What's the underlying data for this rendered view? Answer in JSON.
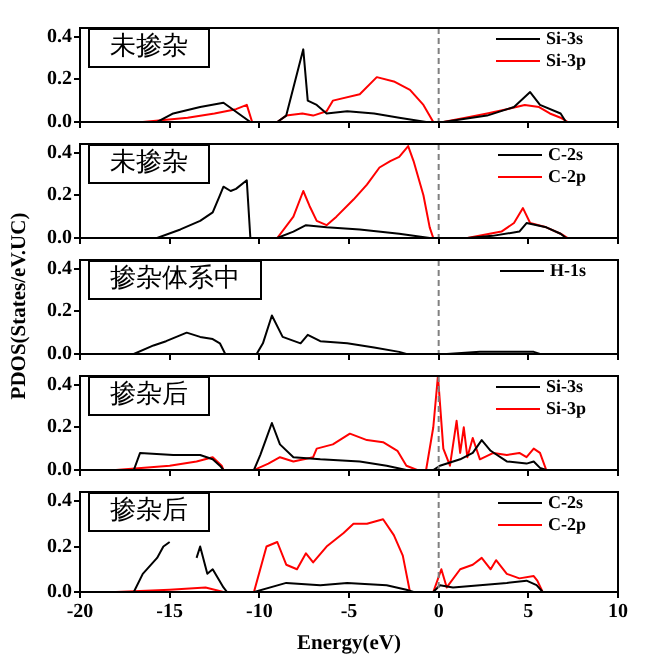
{
  "chart_data": [
    {
      "type": "line",
      "annotations": [
        "未掺杂"
      ],
      "xlim": [
        -20,
        10
      ],
      "xticks": [
        -20,
        -15,
        -10,
        -5,
        0,
        5,
        10
      ],
      "ylim": [
        0,
        0.44
      ],
      "yticks": [
        {
          "value": 0,
          "label": "0.0"
        },
        {
          "value": 0.2,
          "label": "0.2"
        },
        {
          "value": 0.4,
          "label": "0.4"
        }
      ],
      "tick_labels": "y",
      "grid": false,
      "legend": "top right",
      "ref_lines": [
        {
          "axis": "x",
          "value": 0,
          "color": "#808080",
          "line_style": "dashed"
        }
      ],
      "series": [
        {
          "name": "Si-3s",
          "color": "#000000",
          "x": [
            -18,
            -15.7,
            -14.8,
            -13.3,
            -12,
            -10.5,
            -9,
            -8.5,
            -7.55,
            -7.3,
            -6.8,
            -6.25,
            -5.1,
            -3.6,
            -2.2,
            -0.7,
            0.26,
            2.7,
            4.2,
            5.1,
            5.65,
            6.8,
            7.1,
            7.5
          ],
          "values": [
            0,
            0,
            0.04,
            0.07,
            0.09,
            0,
            0,
            0.03,
            0.34,
            0.1,
            0.08,
            0.04,
            0.05,
            0.04,
            0.02,
            0,
            0,
            0.03,
            0.07,
            0.14,
            0.08,
            0.04,
            0,
            0
          ]
        },
        {
          "name": "Si-3p",
          "color": "#ff0000",
          "x": [
            -18,
            -16.5,
            -14,
            -12.5,
            -11.3,
            -10.7,
            -10.4,
            -9,
            -8.5,
            -7.6,
            -7,
            -6.25,
            -5.9,
            -4.4,
            -3.45,
            -2.5,
            -1.6,
            -0.85,
            -0.3,
            0.26,
            1.5,
            2.7,
            3.8,
            4.8,
            5.6,
            6.2,
            6.8,
            7.2,
            7.5
          ],
          "values": [
            0,
            0,
            0.02,
            0.04,
            0.06,
            0.08,
            0,
            0,
            0.03,
            0.04,
            0.03,
            0.05,
            0.1,
            0.13,
            0.21,
            0.19,
            0.15,
            0.08,
            0,
            0,
            0.02,
            0.04,
            0.06,
            0.08,
            0.07,
            0.04,
            0.02,
            0,
            0
          ]
        }
      ]
    },
    {
      "type": "line",
      "annotations": [
        "未掺杂"
      ],
      "xlim": [
        -20,
        10
      ],
      "xticks": [
        -20,
        -15,
        -10,
        -5,
        0,
        5,
        10
      ],
      "ylim": [
        0,
        0.44
      ],
      "yticks": [
        {
          "value": 0,
          "label": "0.0"
        },
        {
          "value": 0.2,
          "label": "0.2"
        },
        {
          "value": 0.4,
          "label": "0.4"
        }
      ],
      "tick_labels": "y",
      "grid": false,
      "legend": "top right",
      "ref_lines": [
        {
          "axis": "x",
          "value": 0,
          "color": "#808080",
          "line_style": "dashed"
        }
      ],
      "series": [
        {
          "name": "C-2s",
          "color": "#000000",
          "x": [
            -18,
            -15.7,
            -14.4,
            -13.3,
            -12.6,
            -12.2,
            -12,
            -11.6,
            -11.3,
            -10.7,
            -10.5,
            -9,
            -8.1,
            -7.4,
            -6.25,
            -4.4,
            -2.2,
            -0.5,
            1.6,
            3,
            4.5,
            4.9,
            6,
            6.8,
            7.1,
            7.5
          ],
          "values": [
            0,
            0,
            0.04,
            0.08,
            0.12,
            0.2,
            0.24,
            0.22,
            0.23,
            0.27,
            0,
            0,
            0.03,
            0.06,
            0.05,
            0.04,
            0.02,
            0,
            0,
            0.01,
            0.03,
            0.07,
            0.05,
            0.02,
            0,
            0
          ]
        },
        {
          "name": "C-2p",
          "color": "#ff0000",
          "x": [
            -18,
            -9,
            -8.1,
            -7.55,
            -7.2,
            -6.8,
            -6.25,
            -5.7,
            -4.75,
            -4,
            -3.3,
            -2.7,
            -2.2,
            -1.7,
            -1.4,
            -0.85,
            -0.5,
            -0.3,
            1.6,
            3.5,
            4.2,
            4.7,
            5.1,
            6,
            6.8,
            7.2,
            7.5
          ],
          "values": [
            0,
            0,
            0.1,
            0.22,
            0.15,
            0.08,
            0.06,
            0.1,
            0.18,
            0.25,
            0.33,
            0.36,
            0.38,
            0.43,
            0.36,
            0.2,
            0.05,
            0,
            0,
            0.03,
            0.07,
            0.14,
            0.07,
            0.05,
            0.02,
            0,
            0
          ]
        }
      ]
    },
    {
      "type": "line",
      "annotations": [
        "掺杂体系中"
      ],
      "ylabel": "PDOS(States/eV.UC)",
      "xlim": [
        -20,
        10
      ],
      "xticks": [
        -20,
        -15,
        -10,
        -5,
        0,
        5,
        10
      ],
      "ylim": [
        0,
        0.44
      ],
      "yticks": [
        {
          "value": 0,
          "label": "0.0"
        },
        {
          "value": 0.2,
          "label": "0.2"
        },
        {
          "value": 0.4,
          "label": "0.4"
        }
      ],
      "tick_labels": "y",
      "grid": false,
      "legend": "top right",
      "ref_lines": [
        {
          "axis": "x",
          "value": 0,
          "color": "#808080",
          "line_style": "dashed"
        }
      ],
      "series": [
        {
          "name": "H-1s",
          "color": "#000000",
          "x": [
            -18,
            -17,
            -15.9,
            -15.2,
            -14.05,
            -13.3,
            -12.6,
            -12.2,
            -11.9,
            -10.15,
            -9.8,
            -9.3,
            -8.7,
            -7.7,
            -7.3,
            -6.6,
            -5.1,
            -3.6,
            -2.2,
            -1.8,
            0.45,
            2.3,
            5.3,
            5.65,
            7.5
          ],
          "values": [
            0,
            0,
            0.04,
            0.06,
            0.1,
            0.08,
            0.07,
            0.05,
            0,
            0,
            0.05,
            0.18,
            0.08,
            0.05,
            0.09,
            0.06,
            0.05,
            0.03,
            0.01,
            0,
            0,
            0.01,
            0.01,
            0,
            0
          ]
        }
      ]
    },
    {
      "type": "line",
      "annotations": [
        "掺杂后"
      ],
      "xlim": [
        -20,
        10
      ],
      "xticks": [
        -20,
        -15,
        -10,
        -5,
        0,
        5,
        10
      ],
      "ylim": [
        0,
        0.44
      ],
      "yticks": [
        {
          "value": 0,
          "label": "0.0"
        },
        {
          "value": 0.2,
          "label": "0.2"
        },
        {
          "value": 0.4,
          "label": "0.4"
        }
      ],
      "tick_labels": "y",
      "grid": false,
      "legend": "top right",
      "ref_lines": [
        {
          "axis": "x",
          "value": 0,
          "color": "#808080",
          "line_style": "dashed"
        }
      ],
      "series": [
        {
          "name": "Si-3s",
          "color": "#000000",
          "x": [
            -18,
            -17,
            -16.65,
            -14.8,
            -13.3,
            -12.6,
            -12.2,
            -12,
            -10.3,
            -9.95,
            -9.6,
            -9.3,
            -8.85,
            -8.1,
            -6.6,
            -4.4,
            -2.9,
            -1.8,
            -0.3,
            0.07,
            1.2,
            1.9,
            2.4,
            2.9,
            3.8,
            4.9,
            5.3,
            5.65,
            6,
            7.5
          ],
          "values": [
            0,
            0,
            0.08,
            0.07,
            0.07,
            0.05,
            0.02,
            0,
            0,
            0.07,
            0.15,
            0.22,
            0.12,
            0.06,
            0.05,
            0.04,
            0.02,
            0,
            0,
            0.02,
            0.05,
            0.08,
            0.14,
            0.09,
            0.04,
            0.03,
            0.04,
            0.01,
            0,
            0
          ]
        },
        {
          "name": "Si-3p",
          "color": "#ff0000",
          "x": [
            -18,
            -15,
            -13.5,
            -12.6,
            -12.1,
            -12,
            -10.3,
            -9.5,
            -8.85,
            -8.1,
            -7,
            -6.8,
            -5.9,
            -4.95,
            -4,
            -3.1,
            -2.3,
            -1.8,
            -1.2,
            -0.7,
            -0.3,
            -0.04,
            0.26,
            0.63,
            1,
            1.2,
            1.4,
            1.6,
            1.9,
            2.3,
            3.05,
            3.8,
            4.5,
            4.9,
            5.3,
            5.65,
            6,
            7.5
          ],
          "values": [
            0,
            0.02,
            0.04,
            0.06,
            0.02,
            0,
            0,
            0.03,
            0.06,
            0.04,
            0.06,
            0.1,
            0.12,
            0.17,
            0.14,
            0.13,
            0.09,
            0.02,
            0,
            0,
            0.2,
            0.44,
            0.1,
            0.02,
            0.23,
            0.08,
            0.2,
            0.06,
            0.15,
            0.05,
            0.08,
            0.07,
            0.08,
            0.06,
            0.1,
            0.08,
            0,
            0
          ]
        }
      ]
    },
    {
      "type": "line",
      "annotations": [
        "掺杂后"
      ],
      "xlabel": "Energy(eV)",
      "xlim": [
        -20,
        10
      ],
      "xticks": [
        -20,
        -15,
        -10,
        -5,
        0,
        5,
        10
      ],
      "ylim": [
        0,
        0.44
      ],
      "yticks": [
        {
          "value": 0,
          "label": "0.0"
        },
        {
          "value": 0.2,
          "label": "0.2"
        },
        {
          "value": 0.4,
          "label": "0.4"
        }
      ],
      "grid": false,
      "legend": "top right",
      "ref_lines": [
        {
          "axis": "x",
          "value": 0,
          "color": "#808080",
          "line_style": "dashed"
        }
      ],
      "series": [
        {
          "name": "C-2s",
          "color": "#000000",
          "x": [
            -18,
            -17,
            -16.5,
            -15.7,
            -15.35,
            -15,
            -13.9,
            -13.5,
            -13.3,
            -12.9,
            -12.6,
            -12,
            -11.8,
            -10.3,
            -8.5,
            -6.6,
            -5.1,
            -2.9,
            -1.8,
            -1.4,
            -0.3,
            0.07,
            0.8,
            2.3,
            3.8,
            4.9,
            5.46,
            5.8,
            7.5
          ],
          "values": [
            0,
            0,
            0.08,
            0.15,
            0.2,
            0.22,
            null,
            0.15,
            0.2,
            0.08,
            0.1,
            0.02,
            0,
            0,
            0.04,
            0.03,
            0.04,
            0.03,
            0.01,
            0,
            0,
            0.03,
            0.02,
            0.03,
            0.04,
            0.05,
            0.03,
            0,
            0
          ]
        },
        {
          "name": "C-2p",
          "color": "#ff0000",
          "x": [
            -18,
            -15,
            -13,
            -12,
            -10.3,
            -9.6,
            -9,
            -8.5,
            -7.9,
            -7.4,
            -7,
            -6.25,
            -5.3,
            -4.75,
            -4,
            -3.1,
            -2.5,
            -2,
            -1.6,
            -0.3,
            0.15,
            0.45,
            1.2,
            1.9,
            2.4,
            2.9,
            3.2,
            3.8,
            4.5,
            5.3,
            5.5,
            5.8,
            7.5
          ],
          "values": [
            0,
            0.01,
            0.02,
            0,
            0,
            0.2,
            0.22,
            0.12,
            0.1,
            0.17,
            0.13,
            0.2,
            0.26,
            0.3,
            0.3,
            0.32,
            0.25,
            0.16,
            0,
            0,
            0.1,
            0.02,
            0.1,
            0.12,
            0.15,
            0.1,
            0.14,
            0.08,
            0.06,
            0.07,
            0.05,
            0,
            0
          ]
        }
      ]
    }
  ]
}
